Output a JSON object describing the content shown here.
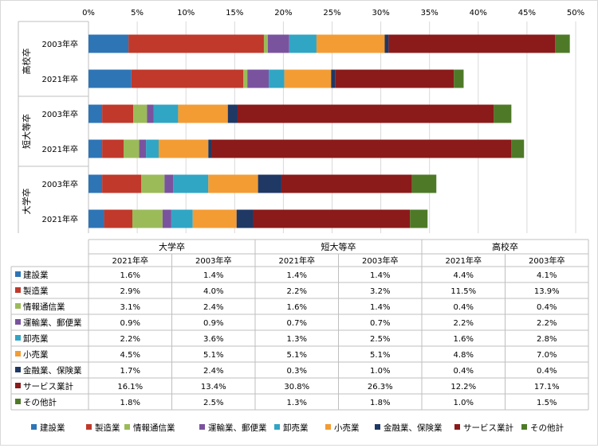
{
  "chart_data": {
    "type": "bar",
    "orientation": "horizontal",
    "stacked": true,
    "title": "",
    "xlim": [
      0,
      50
    ],
    "xticks": [
      "0%",
      "5%",
      "10%",
      "15%",
      "20%",
      "25%",
      "30%",
      "35%",
      "40%",
      "45%",
      "50%"
    ],
    "grid": true,
    "legend_position": "bottom",
    "groups": [
      {
        "label": "高校卒",
        "categories": [
          "2003年卒",
          "2021年卒"
        ]
      },
      {
        "label": "短大等卒",
        "categories": [
          "2003年卒",
          "2021年卒"
        ]
      },
      {
        "label": "大学卒",
        "categories": [
          "2003年卒",
          "2021年卒"
        ]
      }
    ],
    "table_groups": [
      "大学卒",
      "短大等卒",
      "高校卒"
    ],
    "table_columns": [
      "2021年卒",
      "2003年卒",
      "2021年卒",
      "2003年卒",
      "2021年卒",
      "2003年卒"
    ],
    "series": [
      {
        "name": "建設業",
        "color": "#2E75B6",
        "values": [
          1.6,
          1.4,
          1.4,
          1.4,
          4.4,
          4.1
        ],
        "labels": [
          "1.6%",
          "1.4%",
          "1.4%",
          "1.4%",
          "4.4%",
          "4.1%"
        ]
      },
      {
        "name": "製造業",
        "color": "#C0392B",
        "values": [
          2.9,
          4.0,
          2.2,
          3.2,
          11.5,
          13.9
        ],
        "labels": [
          "2.9%",
          "4.0%",
          "2.2%",
          "3.2%",
          "11.5%",
          "13.9%"
        ]
      },
      {
        "name": "情報通信業",
        "color": "#9BBB59",
        "values": [
          3.1,
          2.4,
          1.6,
          1.4,
          0.4,
          0.4
        ],
        "labels": [
          "3.1%",
          "2.4%",
          "1.6%",
          "1.4%",
          "0.4%",
          "0.4%"
        ]
      },
      {
        "name": "運輸業、郵便業",
        "color": "#7A539E",
        "values": [
          0.9,
          0.9,
          0.7,
          0.7,
          2.2,
          2.2
        ],
        "labels": [
          "0.9%",
          "0.9%",
          "0.7%",
          "0.7%",
          "2.2%",
          "2.2%"
        ]
      },
      {
        "name": "卸売業",
        "color": "#31A5C4",
        "values": [
          2.2,
          3.6,
          1.3,
          2.5,
          1.6,
          2.8
        ],
        "labels": [
          "2.2%",
          "3.6%",
          "1.3%",
          "2.5%",
          "1.6%",
          "2.8%"
        ]
      },
      {
        "name": "小売業",
        "color": "#F39C34",
        "values": [
          4.5,
          5.1,
          5.1,
          5.1,
          4.8,
          7.0
        ],
        "labels": [
          "4.5%",
          "5.1%",
          "5.1%",
          "5.1%",
          "4.8%",
          "7.0%"
        ]
      },
      {
        "name": "金融業、保険業",
        "color": "#1F3864",
        "values": [
          1.7,
          2.4,
          0.3,
          1.0,
          0.4,
          0.4
        ],
        "labels": [
          "1.7%",
          "2.4%",
          "0.3%",
          "1.0%",
          "0.4%",
          "0.4%"
        ]
      },
      {
        "name": "サービス業計",
        "color": "#8B1A1A",
        "values": [
          16.1,
          13.4,
          30.8,
          26.3,
          12.2,
          17.1
        ],
        "labels": [
          "16.1%",
          "13.4%",
          "30.8%",
          "26.3%",
          "12.2%",
          "17.1%"
        ]
      },
      {
        "name": "その他計",
        "color": "#4E7A27",
        "values": [
          1.8,
          2.5,
          1.3,
          1.8,
          1.0,
          1.5
        ],
        "labels": [
          "1.8%",
          "2.5%",
          "1.3%",
          "1.8%",
          "1.0%",
          "1.5%"
        ]
      }
    ]
  }
}
